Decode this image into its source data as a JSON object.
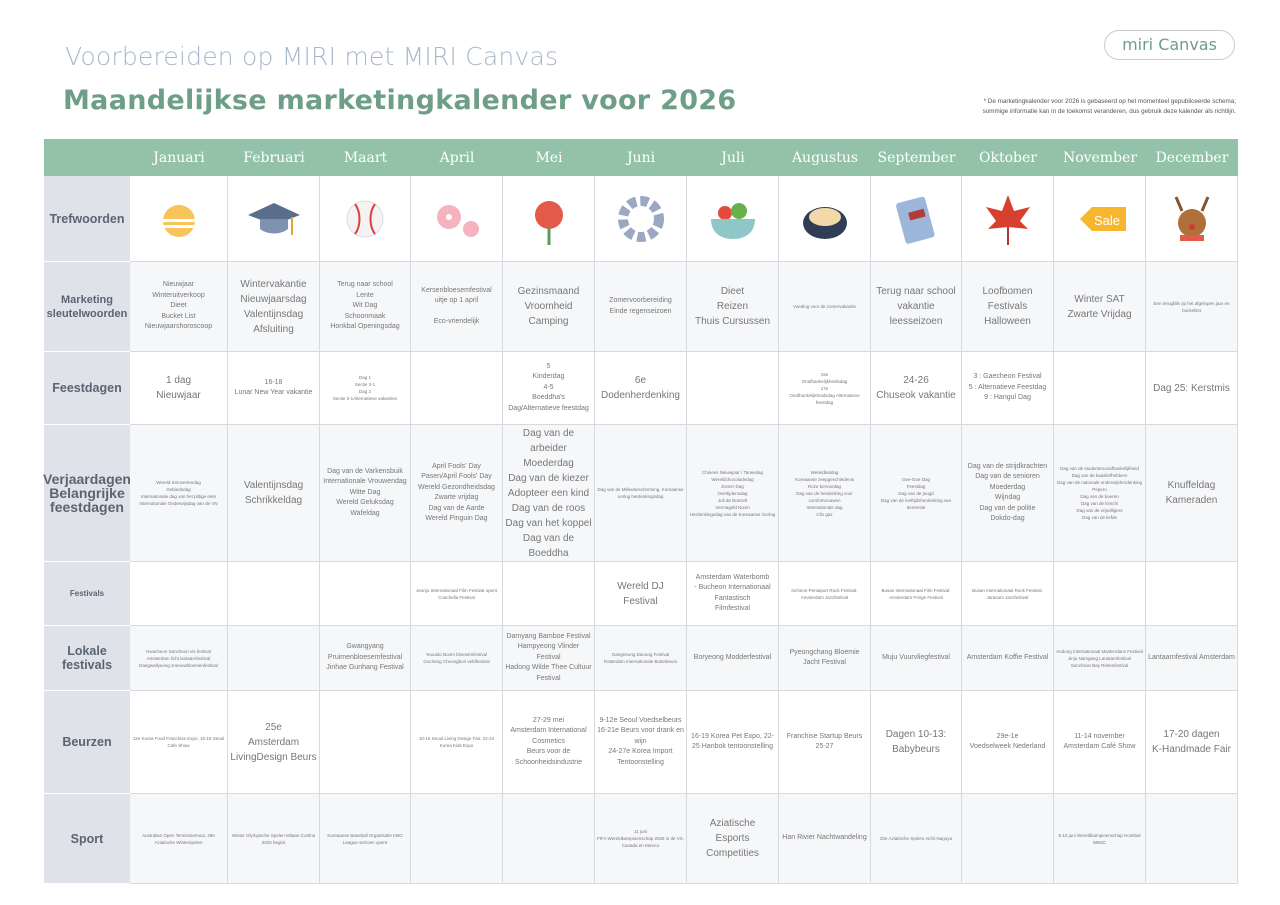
{
  "header": {
    "title": "Voorbereiden op MIRI met MIRI Canvas",
    "subtitle": "Maandelijkse marketingkalender voor 2026",
    "logo": "miri Canvas",
    "note": "* De marketingkalender voor 2026 is gebaseerd op het momenteel gepubliceerde schema;\nsommige informatie kan in de toekomst veranderen, dus gebruik deze kalender als richtlijn."
  },
  "colors": {
    "header_green": "#93c2a9",
    "title_blue": "#a8b8cc",
    "subtitle_green": "#6e9e87",
    "label_bg": "#dfe2e8"
  },
  "months": [
    "Januari",
    "Februari",
    "Maart",
    "April",
    "Mei",
    "Juni",
    "Juli",
    "Augustus",
    "September",
    "Oktober",
    "November",
    "December"
  ],
  "icons": [
    "sunrise-icon",
    "graduation-cap-icon",
    "baseball-icon",
    "cherry-blossom-icon",
    "carnation-icon",
    "umbrella-ring-icon",
    "salad-bowl-icon",
    "samgyetang-pot-icon",
    "book-icon",
    "maple-leaf-icon",
    "sale-tag-icon",
    "reindeer-icon"
  ],
  "rows": [
    {
      "label": "Trefwoorden",
      "cells": []
    },
    {
      "label": "Marketing sleutelwoorden",
      "cells": [
        "Nieuwjaar\nWinteruitverkoop\nDieet\nBucket List\nNieuwjaarshoroscoop",
        "Wintervakantie\nNieuwjaarsdag\nValentijnsdag\nAfsluiting",
        "Terug naar school\nLente\nWit Dag\nSchoonmaak\nHonkbal Openingsdag",
        "Kersenbloesemfestival\nuitje op 1 april\n\nEco-vriendelijk",
        "Gezinsmaand\nVroomheid\nCamping",
        "Zomervoorbereiding\nEinde regenseizoen",
        "Dieet\nReizen\nThuis Cursussen",
        "Voeding voor de zomervakantie",
        "Terug naar school\nvakantie\nleesseizoen",
        "Loofbomen\nFestivals\nHalloween",
        "Winter SAT\nZwarte Vrijdag",
        "Een terugblik op het afgelopen jaar en bucketlist"
      ]
    },
    {
      "label": "Feestdagen",
      "cells": [
        "1 dag\nNieuwjaar",
        "16-18\nLunar New Year vakantie",
        "Dag 1\nSectie 3-1\nDag 2\nSectie 3-1Alternatieve vakanties",
        "",
        "5\nKinderdag\n4-5\nBoeddha's\nDag/Alternatieve feestdag",
        "6e\nDodenherdenking",
        "",
        "15e\nOnafhankelijkheidsdag\n17e\nOnafhankelijkheidsdag Alternatieve feestdag",
        "24-26\nChuseok vakantie",
        "3 : Gaecheon Festival\n5 : Alternatieve Feestdag\n9 : Hangul Dag",
        "",
        "Dag 25: Kerstmis"
      ]
    },
    {
      "label": "Verjaardagen\nBelangrijke feestdagen",
      "cells": [
        "Wereld Introvertendag\nGebiedsdag\nInternationale dag van het pittige eten\nInternationale Onderwijsdag van de VN",
        "Valentijnsdag\nSchrikkeldag",
        "Dag van de Varkensbuik\nInternationale Vrouwendag\nWitte Dag\nWereld Geluksdag\nWafeldag",
        "April Fools' Day\nPasen/April Fools' Day\nWereld Gezondheidsdag\nZwarte vrijdag\nDag van de Aarde\nWereld Pinguin Dag",
        "Dag van de arbeider\nMoederdag\nDag van de kiezer\nAdopteer een kind\nDag van de roos\nDag van het koppel\nDag van de Boeddha",
        "Dag van de Milieubescherming, Koreaanse oorlog herdenkingsdag",
        "Chinees Nieuwjaar / Tarwedag\nWereldchocoladedag\nZomer Dag\nOverlijdensdag\nJuli de Boezelt\nVermageld Nixen\nHerdenkingsdag van de Koreaanse Oorlog",
        "Wereldkatdag\nKoreaanse zeepgeschiedenis\nRoze bervoedag\nDag van de herdenking voor comfortvrouwen\nInternationale dag\nClin gaz",
        "Gee-Goe Dag\nFeestdag\nDag van de jeugd\nDag van de leeftijdsherdenking van dementie",
        "Dag van de strijdkrachten\nDag van de senioren\nMoederdag\nWijndag\nDag van de politie\nDokdo-dag",
        "Dag van de studentenonafhankelijkheid\nDag van de kaasliefhebbers\nDag van de nationale onderwijsherdenking\nPepero\nDag van de boeren\nDag van de kimchi\nDag van de vrijwilligers\nDag van de liefde",
        "Knuffeldag\nKameraden"
      ]
    },
    {
      "label": "Festivals",
      "cells": [
        "",
        "",
        "",
        "Jeonju Internationaal Film Festival opent\nCoachella Festival",
        "",
        "Wereld DJ\nFestival",
        "Amsterdam Waterbomb\n- Bucheon Internationaal Fantastisch\nFilmfestival",
        "Incheon Pentaport Rock Festival, Amsterdam Jazzfestival",
        "Busan Internationaal Film Festival, Amsterdam Fringe Festival",
        "Busan Internationaal Rock Festival, Jarasum Jazzfestival",
        "",
        ""
      ]
    },
    {
      "label": "Lokale festivals",
      "cells": [
        "Hwacheon Sancheon vis festival\nAmsterdam licht lantaarnfestival\nDaegwallyeong sneeuwbloemenfestival",
        "",
        "Gwangyang Pruimenbloesemfestival\nJinhae Gunhang Festival",
        "Yeouido Boom bloesemfestival\nGochang Cheongbori veldfestival",
        "Damyang Bamboe Festival\nHampyeong Vlinder Festival\nHadong Wilde Thee Cultuur Festival",
        "Gangneung Danoog Festival\nRotterdam Internationale Bolanbeurs",
        "Boryeong Modderfestival",
        "Pyeongchang Bloemie Jacht Festival",
        "Muju Vuurvliegfestival",
        "Amsterdam Koffie Festival",
        "Andong Internationaal Maskerdans Festival\nJinju Namgang Lantaarnfestival\nSuncheon Bay Rietenfestival",
        "Lantaarnfestival Amsterdam"
      ]
    },
    {
      "label": "Beurzen",
      "cells": [
        "12e Korea Food Franchise Expo, 15-18 Seoul Cafe Show",
        "25e\nAmsterdam LivingDesign Beurs",
        "",
        "10-16 Seoul Living Design Fair, 22-24 Korea Kids Expo",
        "27-29 mei\nAmsterdam International Cosmetics\nBeurs voor de Schoonheidsindustrie",
        "9-12e Seoul Voedselbeurs\n16-21e Beurs voor drank en wijn\n24-27e Korea Import Tentoonstelling",
        "16-19 Korea Pet Expo, 22-25 Hanbok tentoonstelling",
        "Franchise Startup Beurs 25-27",
        "Dagen 10-13:\nBabybeurs",
        "29e-1e\nVoedselweek Nederland",
        "11-14 november\nAmsterdam Café Show",
        "17-20 dagen\nK-Handmade Fair"
      ]
    },
    {
      "label": "Sport",
      "cells": [
        "Australian Open Tennistoernooi, 28e Aziatische Winterspelen",
        "Winter Olympische Spelen Milaan-Cortina 2026 begint",
        "Koreaanse Baseball Organisatie KBO League seizoen opent",
        "",
        "",
        "11 juni\nFIFA Wereldkampioenschap 2026 in de VS, Canada en Mexico",
        "Aziatische\nEsports Competities",
        "Han Rivier Nachtwandeling",
        "20e Aziatische Spelen Aichi-Nagoya",
        "",
        "5-15 juni Wereldkampioenschap Honkbal WBSC",
        ""
      ]
    }
  ]
}
